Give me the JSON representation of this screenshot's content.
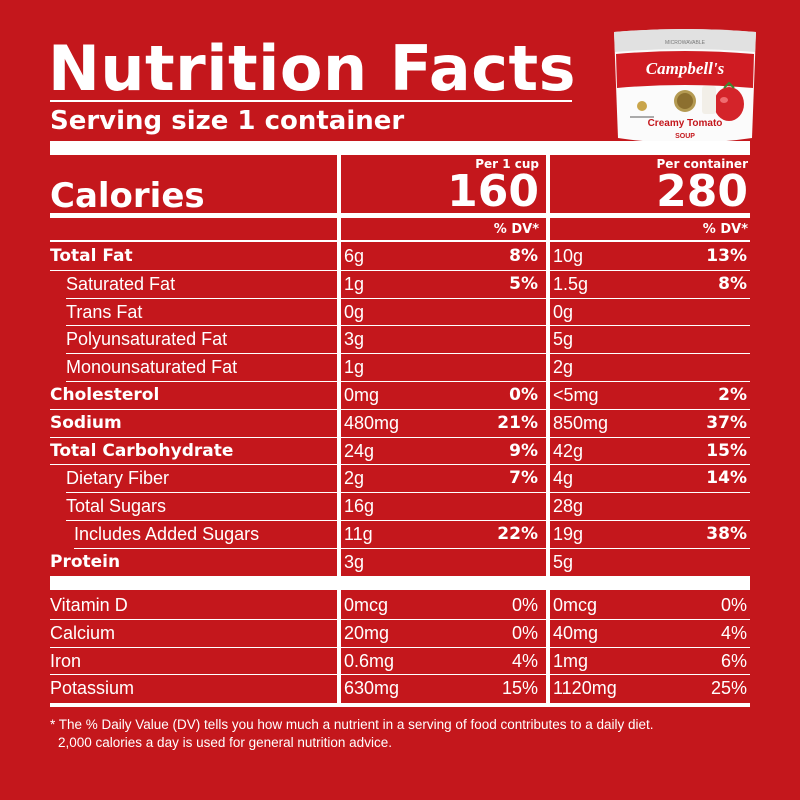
{
  "header": {
    "title": "Nutrition Facts",
    "serving": "Serving size  1 container"
  },
  "product": {
    "top_label": "MICROWAVABLE",
    "brand": "Campbell's",
    "name": "Creamy Tomato",
    "type": "SOUP",
    "icon": "soup-container-image"
  },
  "columns": [
    {
      "heading": "Per 1 cup",
      "calories": "160",
      "dv_heading": "% DV*"
    },
    {
      "heading": "Per container",
      "calories": "280",
      "dv_heading": "% DV*"
    }
  ],
  "calories_label": "Calories",
  "nutrients": [
    {
      "name": "Total Fat",
      "bold": true,
      "indent": 0,
      "c1_amount": "6g",
      "c1_dv": "8%",
      "c2_amount": "10g",
      "c2_dv": "13%"
    },
    {
      "name": "Saturated Fat",
      "bold": false,
      "indent": 1,
      "c1_amount": "1g",
      "c1_dv": "5%",
      "c2_amount": "1.5g",
      "c2_dv": "8%"
    },
    {
      "name": "Trans Fat",
      "bold": false,
      "indent": 1,
      "c1_amount": "0g",
      "c1_dv": "",
      "c2_amount": "0g",
      "c2_dv": ""
    },
    {
      "name": "Polyunsaturated Fat",
      "bold": false,
      "indent": 1,
      "c1_amount": "3g",
      "c1_dv": "",
      "c2_amount": "5g",
      "c2_dv": ""
    },
    {
      "name": "Monounsaturated Fat",
      "bold": false,
      "indent": 1,
      "c1_amount": "1g",
      "c1_dv": "",
      "c2_amount": "2g",
      "c2_dv": ""
    },
    {
      "name": "Cholesterol",
      "bold": true,
      "indent": 0,
      "c1_amount": "0mg",
      "c1_dv": "0%",
      "c2_amount": "<5mg",
      "c2_dv": "2%"
    },
    {
      "name": "Sodium",
      "bold": true,
      "indent": 0,
      "c1_amount": "480mg",
      "c1_dv": "21%",
      "c2_amount": "850mg",
      "c2_dv": "37%"
    },
    {
      "name": "Total Carbohydrate",
      "bold": true,
      "indent": 0,
      "c1_amount": "24g",
      "c1_dv": "9%",
      "c2_amount": "42g",
      "c2_dv": "15%"
    },
    {
      "name": "Dietary Fiber",
      "bold": false,
      "indent": 1,
      "c1_amount": "2g",
      "c1_dv": "7%",
      "c2_amount": "4g",
      "c2_dv": "14%"
    },
    {
      "name": "Total Sugars",
      "bold": false,
      "indent": 1,
      "c1_amount": "16g",
      "c1_dv": "",
      "c2_amount": "28g",
      "c2_dv": ""
    },
    {
      "name": "Includes Added Sugars",
      "bold": false,
      "indent": 2,
      "c1_amount": "11g",
      "c1_dv": "22%",
      "c2_amount": "19g",
      "c2_dv": "38%"
    },
    {
      "name": "Protein",
      "bold": true,
      "indent": 0,
      "c1_amount": "3g",
      "c1_dv": "",
      "c2_amount": "5g",
      "c2_dv": ""
    }
  ],
  "micronutrients": [
    {
      "name": "Vitamin D",
      "c1_amount": "0mcg",
      "c1_dv": "0%",
      "c2_amount": "0mcg",
      "c2_dv": "0%"
    },
    {
      "name": "Calcium",
      "c1_amount": "20mg",
      "c1_dv": "0%",
      "c2_amount": "40mg",
      "c2_dv": "4%"
    },
    {
      "name": "Iron",
      "c1_amount": "0.6mg",
      "c1_dv": "4%",
      "c2_amount": "1mg",
      "c2_dv": "6%"
    },
    {
      "name": "Potassium",
      "c1_amount": "630mg",
      "c1_dv": "15%",
      "c2_amount": "1120mg",
      "c2_dv": "25%"
    }
  ],
  "footnote": {
    "line1": "* The % Daily Value (DV) tells you how much a nutrient in a serving of food contributes to a daily diet.",
    "line2": "2,000 calories a day is used for general nutrition advice."
  },
  "colors": {
    "background": "#c4171c",
    "text": "#ffffff"
  }
}
